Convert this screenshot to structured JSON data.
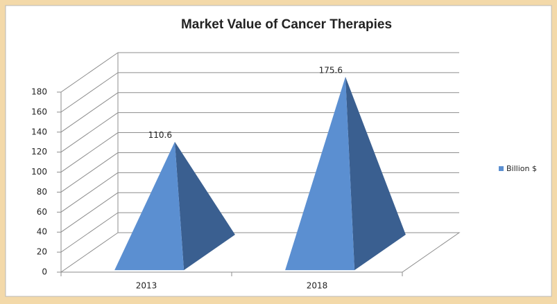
{
  "chart_data": {
    "type": "pyramid",
    "title": "Market Value of Cancer Therapies",
    "categories": [
      "2013",
      "2018"
    ],
    "series": [
      {
        "name": "Billion $",
        "color": "#5b8fd1",
        "values": [
          110.6,
          175.6
        ]
      }
    ],
    "ylim": [
      0,
      180
    ],
    "yticks": [
      0,
      20,
      40,
      60,
      80,
      100,
      120,
      140,
      160,
      180
    ],
    "grid": true,
    "legend": "right"
  }
}
